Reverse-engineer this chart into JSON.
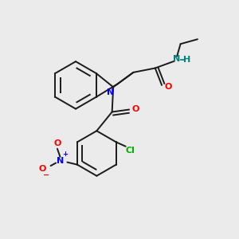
{
  "background_color": "#ebebeb",
  "bond_color": "#1a1a1a",
  "atom_colors": {
    "N": "#0000ff",
    "O": "#ff0000",
    "Cl": "#00aa00",
    "NH": "#008080"
  },
  "lw": 1.4,
  "sep": 0.11
}
